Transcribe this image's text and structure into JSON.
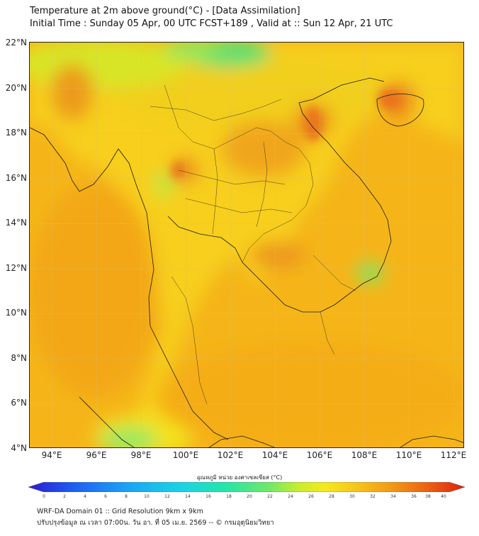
{
  "header": {
    "title_line1": "Temperature at 2m above ground(°C) - [Data Assimilation]",
    "title_line2": "Initial Time : Sunday 05 Apr, 00 UTC FCST+189 , Valid at :: Sun 12 Apr, 21 UTC"
  },
  "map": {
    "lat_labels": [
      "22°N",
      "20°N",
      "18°N",
      "16°N",
      "14°N",
      "12°N",
      "10°N",
      "8°N",
      "6°N",
      "4°N"
    ],
    "lon_labels": [
      "94°E",
      "96°E",
      "98°E",
      "100°E",
      "102°E",
      "104°E",
      "106°E",
      "108°E",
      "110°E",
      "112°E"
    ],
    "lat_range": [
      4,
      22
    ],
    "lon_range": [
      93,
      112.5
    ],
    "base_color": "#f5b718",
    "land_color": "#f7cc1a",
    "border_color": "#1a1a1a"
  },
  "colorbar": {
    "title": "อุณหภูมิ หน่วย องศาเซลเซียส (°C)",
    "ticks": [
      "0",
      "2",
      "4",
      "6",
      "8",
      "10",
      "12",
      "14",
      "16",
      "18",
      "20",
      "22",
      "24",
      "26",
      "28",
      "30",
      "32",
      "34",
      "36",
      "38",
      "40"
    ],
    "colors": [
      "#2b1bd6",
      "#1e5cf0",
      "#1aa0f5",
      "#19d4e6",
      "#22e6a8",
      "#6ee86a",
      "#c8ee2a",
      "#f5e91c",
      "#f7c51a",
      "#f39a16",
      "#ec6512",
      "#e0200e"
    ]
  },
  "footer": {
    "line1": "WRF-DA Domain 01 :: Grid Resolution 9km x 9km",
    "line2": "ปรับปรุงข้อมูล ณ เวลา 07:00น. วัน อา. ที่ 05 เม.ย. 2569 -- © กรมอุตุนิยมวิทยา"
  }
}
